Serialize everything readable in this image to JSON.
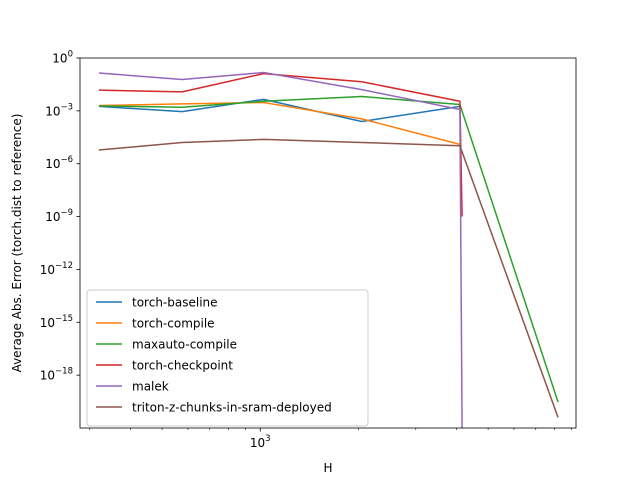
{
  "chart_data": {
    "type": "line",
    "title": "",
    "xlabel": "H",
    "ylabel": "Average Abs. Error (torch.dist to reference)",
    "xscale": "log",
    "yscale": "log",
    "xlim": [
      280,
      9300
    ],
    "ylim": [
      1e-21,
      1.0
    ],
    "x_ticks": [
      {
        "value": 1000,
        "label": "10",
        "exp": "3"
      }
    ],
    "y_ticks": [
      {
        "value": 1,
        "label": "10",
        "exp": "0"
      },
      {
        "value": 0.001,
        "label": "10",
        "exp": "−3"
      },
      {
        "value": 1e-06,
        "label": "10",
        "exp": "−6"
      },
      {
        "value": 1e-09,
        "label": "10",
        "exp": "−9"
      },
      {
        "value": 1e-12,
        "label": "10",
        "exp": "−12"
      },
      {
        "value": 1e-15,
        "label": "10",
        "exp": "−15"
      },
      {
        "value": 1e-18,
        "label": "10",
        "exp": "−18"
      }
    ],
    "grid": false,
    "legend_position": "lower-left",
    "series": [
      {
        "name": "torch-baseline",
        "color": "#1f77b4",
        "points": [
          [
            320,
            0.0018
          ],
          [
            576,
            0.0009
          ],
          [
            1024,
            0.0045
          ],
          [
            2048,
            0.00025
          ],
          [
            4096,
            0.0018
          ]
        ]
      },
      {
        "name": "torch-compile",
        "color": "#ff7f0e",
        "points": [
          [
            320,
            0.002
          ],
          [
            576,
            0.0025
          ],
          [
            1024,
            0.003
          ],
          [
            2048,
            0.00035
          ],
          [
            4096,
            1.25e-05
          ]
        ]
      },
      {
        "name": "maxauto-compile",
        "color": "#2ca02c",
        "points": [
          [
            320,
            0.0019
          ],
          [
            576,
            0.0016
          ],
          [
            1024,
            0.0035
          ],
          [
            2048,
            0.0065
          ],
          [
            4096,
            0.0023
          ],
          [
            8192,
            3e-20
          ]
        ]
      },
      {
        "name": "torch-checkpoint",
        "color": "#d62728",
        "points": [
          [
            320,
            0.015
          ],
          [
            576,
            0.012
          ],
          [
            1024,
            0.13
          ],
          [
            2048,
            0.045
          ],
          [
            4096,
            0.0035
          ],
          [
            4160,
            1e-09
          ]
        ]
      },
      {
        "name": "malek",
        "color": "#9467bd",
        "points": [
          [
            320,
            0.14
          ],
          [
            576,
            0.06
          ],
          [
            1024,
            0.15
          ],
          [
            2048,
            0.016
          ],
          [
            4096,
            0.0012
          ],
          [
            4160,
            1e-21
          ]
        ]
      },
      {
        "name": "triton-z-chunks-in-sram-deployed",
        "color": "#8c564b",
        "points": [
          [
            320,
            6e-06
          ],
          [
            576,
            1.6e-05
          ],
          [
            1024,
            2.4e-05
          ],
          [
            2048,
            1.6e-05
          ],
          [
            4096,
            1.05e-05
          ],
          [
            8192,
            4e-21
          ]
        ]
      }
    ]
  }
}
